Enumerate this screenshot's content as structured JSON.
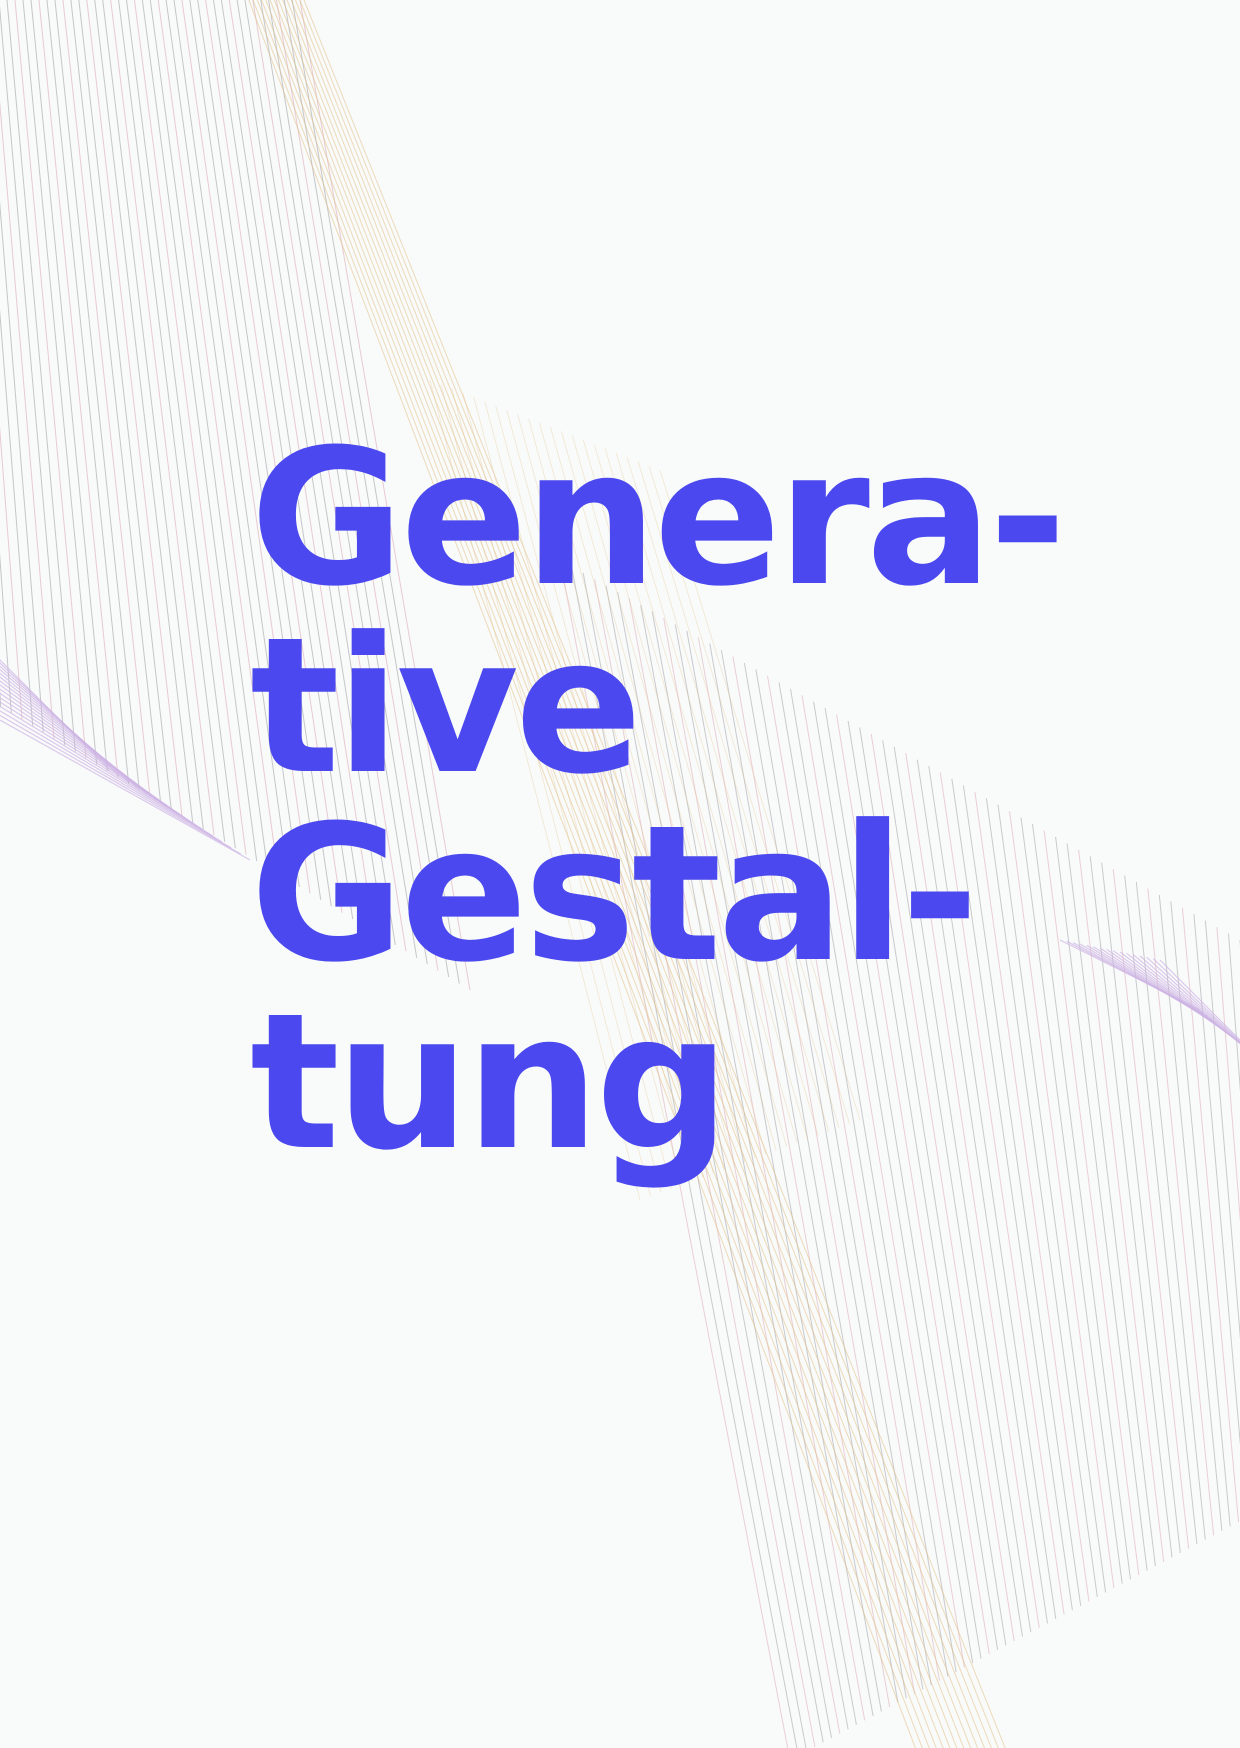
{
  "poster": {
    "background_color": "#f9fafa",
    "title_color": "#4a48ee",
    "title_lines": [
      "Genera-",
      "tive",
      "Gestal-",
      "tung"
    ],
    "line_colors": {
      "grey": "#9a9aa0",
      "rose": "#d9a4b0",
      "gold": "#e1c084",
      "lilac": "#cdb3e4"
    }
  }
}
